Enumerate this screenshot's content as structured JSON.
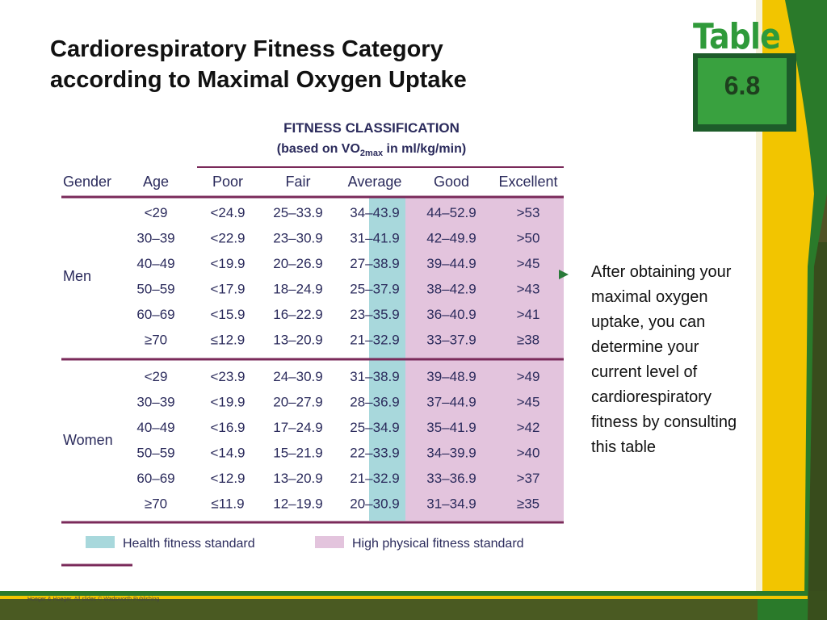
{
  "slide": {
    "title_line1": "Cardiorespiratory Fitness Category",
    "title_line2": "according to Maximal Oxygen Uptake",
    "badge_word": "Table",
    "badge_number": "6.8",
    "note": "After obtaining your maximal oxygen uptake, you can determine your current level of cardiorespiratory fitness by consulting this table",
    "footer": "Hoeger & Hoeger, All slides © Wadsworth Publishing"
  },
  "table": {
    "title": "FITNESS CLASSIFICATION",
    "subtitle_pre": "(based on VO",
    "subtitle_sub": "2max",
    "subtitle_post": " in ml/kg/min)",
    "headers": [
      "Gender",
      "Age",
      "Poor",
      "Fair",
      "Average",
      "Good",
      "Excellent"
    ],
    "groups": [
      {
        "gender": "Men",
        "rows": [
          [
            "<29",
            "<24.9",
            "25–33.9",
            "34–43.9",
            "44–52.9",
            ">53"
          ],
          [
            "30–39",
            "<22.9",
            "23–30.9",
            "31–41.9",
            "42–49.9",
            ">50"
          ],
          [
            "40–49",
            "<19.9",
            "20–26.9",
            "27–38.9",
            "39–44.9",
            ">45"
          ],
          [
            "50–59",
            "<17.9",
            "18–24.9",
            "25–37.9",
            "38–42.9",
            ">43"
          ],
          [
            "60–69",
            "<15.9",
            "16–22.9",
            "23–35.9",
            "36–40.9",
            ">41"
          ],
          [
            "≥70",
            "≤12.9",
            "13–20.9",
            "21–32.9",
            "33–37.9",
            "≥38"
          ]
        ]
      },
      {
        "gender": "Women",
        "rows": [
          [
            "<29",
            "<23.9",
            "24–30.9",
            "31–38.9",
            "39–48.9",
            ">49"
          ],
          [
            "30–39",
            "<19.9",
            "20–27.9",
            "28–36.9",
            "37–44.9",
            ">45"
          ],
          [
            "40–49",
            "<16.9",
            "17–24.9",
            "25–34.9",
            "35–41.9",
            ">42"
          ],
          [
            "50–59",
            "<14.9",
            "15–21.9",
            "22–33.9",
            "34–39.9",
            ">40"
          ],
          [
            "60–69",
            "<12.9",
            "13–20.9",
            "21–32.9",
            "33–36.9",
            ">37"
          ],
          [
            "≥70",
            "≤11.9",
            "12–19.9",
            "20–30.9",
            "31–34.9",
            "≥35"
          ]
        ]
      }
    ],
    "legend": [
      {
        "label": "Health fitness standard",
        "color": "#a8d8dc"
      },
      {
        "label": "High physical fitness standard",
        "color": "#e3c4dd"
      }
    ],
    "colors": {
      "rule": "#7a2a5a",
      "text": "#2b2b5c"
    }
  }
}
